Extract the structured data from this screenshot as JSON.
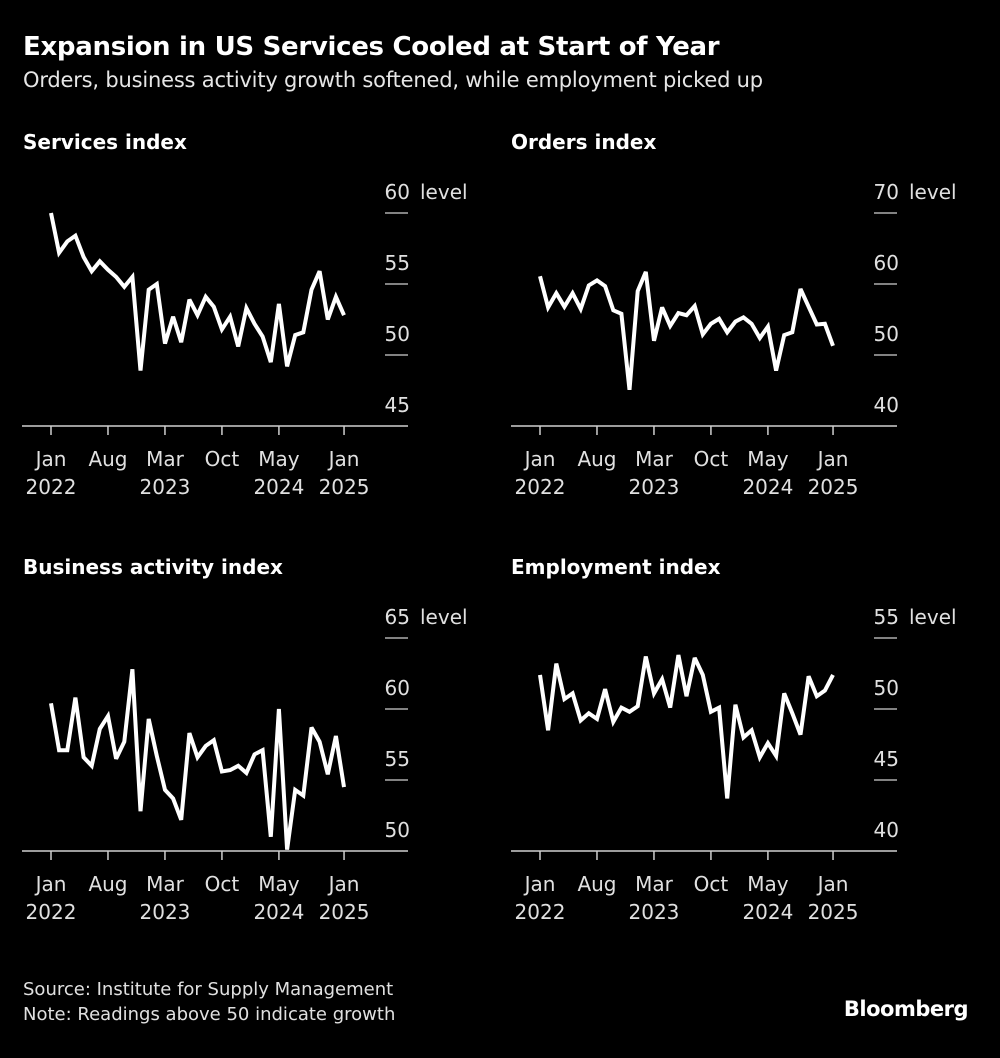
{
  "header": {
    "title": "Expansion in US Services Cooled at Start of Year",
    "subtitle": "Orders, business activity growth softened, while employment picked up"
  },
  "footer": {
    "source": "Source: Institute for Supply Management",
    "note": "Note: Readings above 50 indicate growth",
    "brand": "Bloomberg"
  },
  "colors": {
    "background": "#000000",
    "line": "#ffffff",
    "text": "#e0e0e0"
  },
  "chart_data": [
    {
      "type": "line",
      "title": "Services index",
      "xlabel": "",
      "ylabel": "level",
      "x_start": "Jan 2022",
      "x_end": "Jan 2025",
      "frequency": "monthly",
      "x_ticks": [
        {
          "label": [
            "Jan",
            "2022"
          ],
          "month": 0
        },
        {
          "label": [
            "Aug",
            ""
          ],
          "month": 7
        },
        {
          "label": [
            "Mar",
            "2023"
          ],
          "month": 14
        },
        {
          "label": [
            "Oct",
            ""
          ],
          "month": 21
        },
        {
          "label": [
            "May",
            "2024"
          ],
          "month": 28
        },
        {
          "label": [
            "Jan",
            "2025"
          ],
          "month": 36
        }
      ],
      "y_ticks": [
        45,
        50,
        55,
        60
      ],
      "y_unit_label": "level",
      "ylim": [
        45,
        60
      ],
      "grid": "horizontal ticks on right",
      "series": [
        {
          "name": "Services index",
          "values": [
            60.0,
            57.2,
            58.0,
            58.4,
            56.9,
            55.9,
            56.6,
            56.0,
            55.5,
            54.8,
            55.5,
            48.9,
            54.6,
            55.0,
            50.8,
            52.7,
            50.9,
            53.9,
            52.8,
            54.1,
            53.4,
            51.8,
            52.7,
            50.6,
            53.3,
            52.2,
            51.3,
            49.5,
            53.6,
            49.2,
            51.4,
            51.6,
            54.6,
            55.9,
            52.5,
            54.1,
            52.8
          ]
        }
      ]
    },
    {
      "type": "line",
      "title": "Orders index",
      "xlabel": "",
      "ylabel": "level",
      "x_start": "Jan 2022",
      "x_end": "Jan 2025",
      "frequency": "monthly",
      "x_ticks": [
        {
          "label": [
            "Jan",
            "2022"
          ],
          "month": 0
        },
        {
          "label": [
            "Aug",
            ""
          ],
          "month": 7
        },
        {
          "label": [
            "Mar",
            "2023"
          ],
          "month": 14
        },
        {
          "label": [
            "Oct",
            ""
          ],
          "month": 21
        },
        {
          "label": [
            "May",
            "2024"
          ],
          "month": 28
        },
        {
          "label": [
            "Jan",
            "2025"
          ],
          "month": 36
        }
      ],
      "y_ticks": [
        40,
        50,
        60,
        70
      ],
      "y_unit_label": "level",
      "ylim": [
        40,
        70
      ],
      "grid": "horizontal ticks on right",
      "series": [
        {
          "name": "Orders index",
          "values": [
            61.1,
            56.7,
            58.7,
            56.8,
            58.7,
            56.5,
            59.8,
            60.5,
            59.7,
            56.3,
            55.8,
            45.1,
            59.0,
            61.7,
            52.0,
            56.7,
            54.1,
            55.9,
            55.6,
            56.9,
            52.9,
            54.4,
            55.1,
            53.2,
            54.7,
            55.3,
            54.4,
            52.4,
            54.0,
            47.8,
            52.8,
            53.2,
            59.3,
            56.8,
            54.3,
            54.4,
            51.3
          ]
        }
      ]
    },
    {
      "type": "line",
      "title": "Business activity index",
      "xlabel": "",
      "ylabel": "level",
      "x_start": "Jan 2022",
      "x_end": "Jan 2025",
      "frequency": "monthly",
      "x_ticks": [
        {
          "label": [
            "Jan",
            "2022"
          ],
          "month": 0
        },
        {
          "label": [
            "Aug",
            ""
          ],
          "month": 7
        },
        {
          "label": [
            "Mar",
            "2023"
          ],
          "month": 14
        },
        {
          "label": [
            "Oct",
            ""
          ],
          "month": 21
        },
        {
          "label": [
            "May",
            "2024"
          ],
          "month": 28
        },
        {
          "label": [
            "Jan",
            "2025"
          ],
          "month": 36
        }
      ],
      "y_ticks": [
        50,
        55,
        60,
        65
      ],
      "y_unit_label": "level",
      "ylim": [
        50,
        65
      ],
      "grid": "horizontal ticks on right",
      "series": [
        {
          "name": "Business activity index",
          "values": [
            60.4,
            57.1,
            57.1,
            60.8,
            56.6,
            56.0,
            58.6,
            59.5,
            56.5,
            57.7,
            62.8,
            52.8,
            59.3,
            56.7,
            54.3,
            53.7,
            52.2,
            58.3,
            56.6,
            57.4,
            57.8,
            55.6,
            55.7,
            56.0,
            55.5,
            56.8,
            57.1,
            51.0,
            60.0,
            50.1,
            54.3,
            53.9,
            58.7,
            57.7,
            55.4,
            58.1,
            54.5
          ]
        }
      ]
    },
    {
      "type": "line",
      "title": "Employment index",
      "xlabel": "",
      "ylabel": "level",
      "x_start": "Jan 2022",
      "x_end": "Jan 2025",
      "frequency": "monthly",
      "x_ticks": [
        {
          "label": [
            "Jan",
            "2022"
          ],
          "month": 0
        },
        {
          "label": [
            "Aug",
            ""
          ],
          "month": 7
        },
        {
          "label": [
            "Mar",
            "2023"
          ],
          "month": 14
        },
        {
          "label": [
            "Oct",
            ""
          ],
          "month": 21
        },
        {
          "label": [
            "May",
            "2024"
          ],
          "month": 28
        },
        {
          "label": [
            "Jan",
            "2025"
          ],
          "month": 36
        }
      ],
      "y_ticks": [
        40,
        45,
        50,
        55
      ],
      "y_unit_label": "level",
      "ylim": [
        40,
        55
      ],
      "grid": "horizontal ticks on right",
      "series": [
        {
          "name": "Employment index",
          "values": [
            52.4,
            48.5,
            53.2,
            50.7,
            51.1,
            49.2,
            49.7,
            49.3,
            51.4,
            49.1,
            50.1,
            49.8,
            50.2,
            53.7,
            51.1,
            52.1,
            50.1,
            53.8,
            50.9,
            53.6,
            52.4,
            49.8,
            50.1,
            43.7,
            50.3,
            48.0,
            48.5,
            46.6,
            47.6,
            46.7,
            51.1,
            49.7,
            48.2,
            52.3,
            50.9,
            51.3,
            52.4
          ]
        }
      ]
    }
  ]
}
